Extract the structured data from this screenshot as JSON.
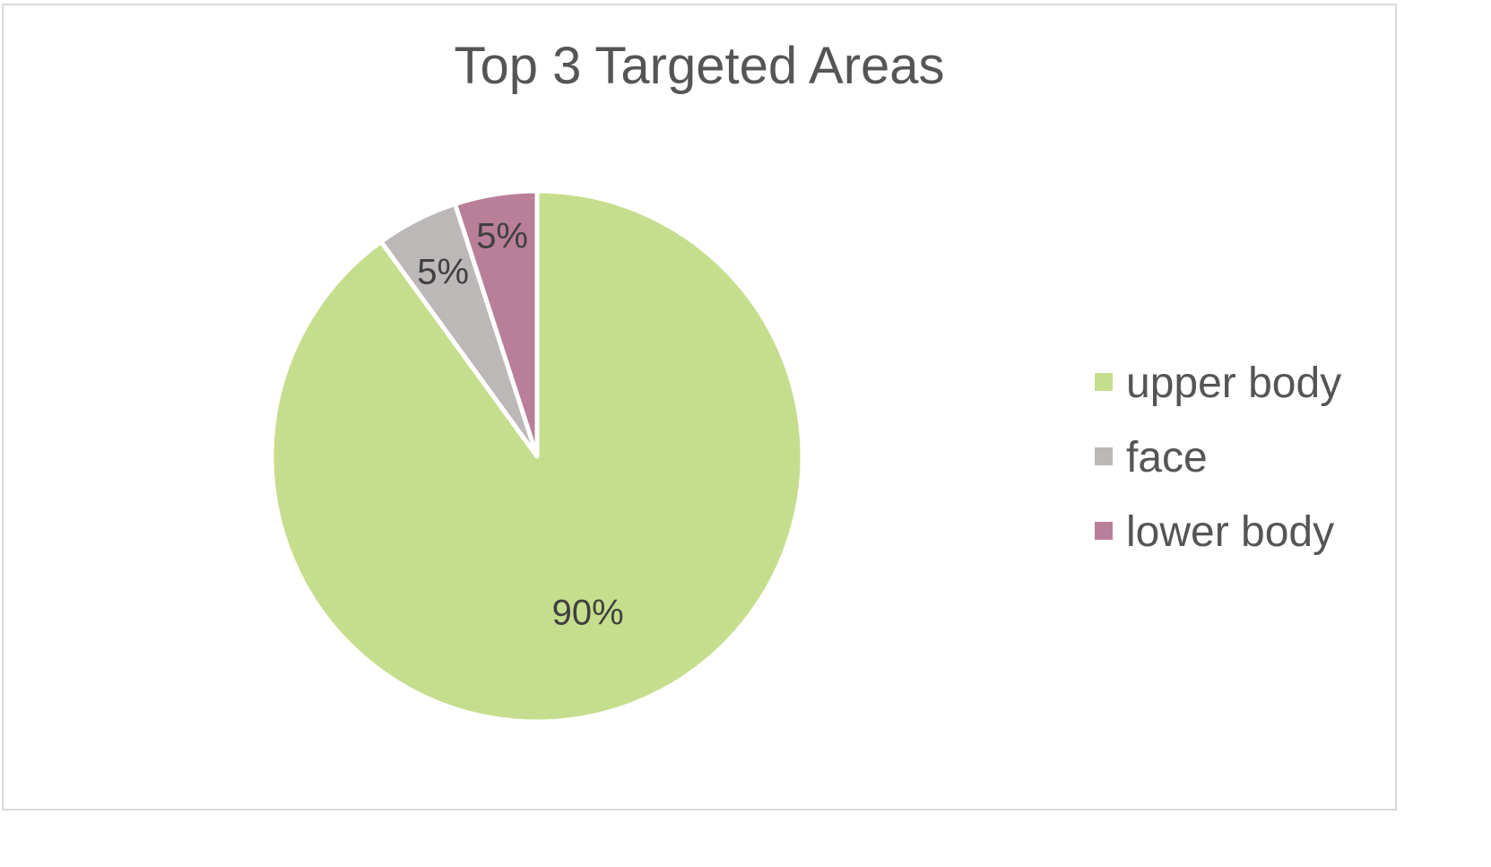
{
  "chart_data": {
    "type": "pie",
    "title": "Top 3 Targeted Areas",
    "start_angle_deg": 0,
    "direction": "clockwise",
    "legend_position": "right",
    "series": [
      {
        "values": [
          90,
          5,
          5
        ],
        "data_labels": [
          "90%",
          "5%",
          "5%"
        ]
      }
    ],
    "categories": [
      "upper body",
      "face",
      "lower body"
    ],
    "colors": [
      "#c5de8d",
      "#bcb8b8",
      "#b97f98"
    ],
    "text_color": "#555555",
    "slice_border_color": "#ffffff"
  }
}
